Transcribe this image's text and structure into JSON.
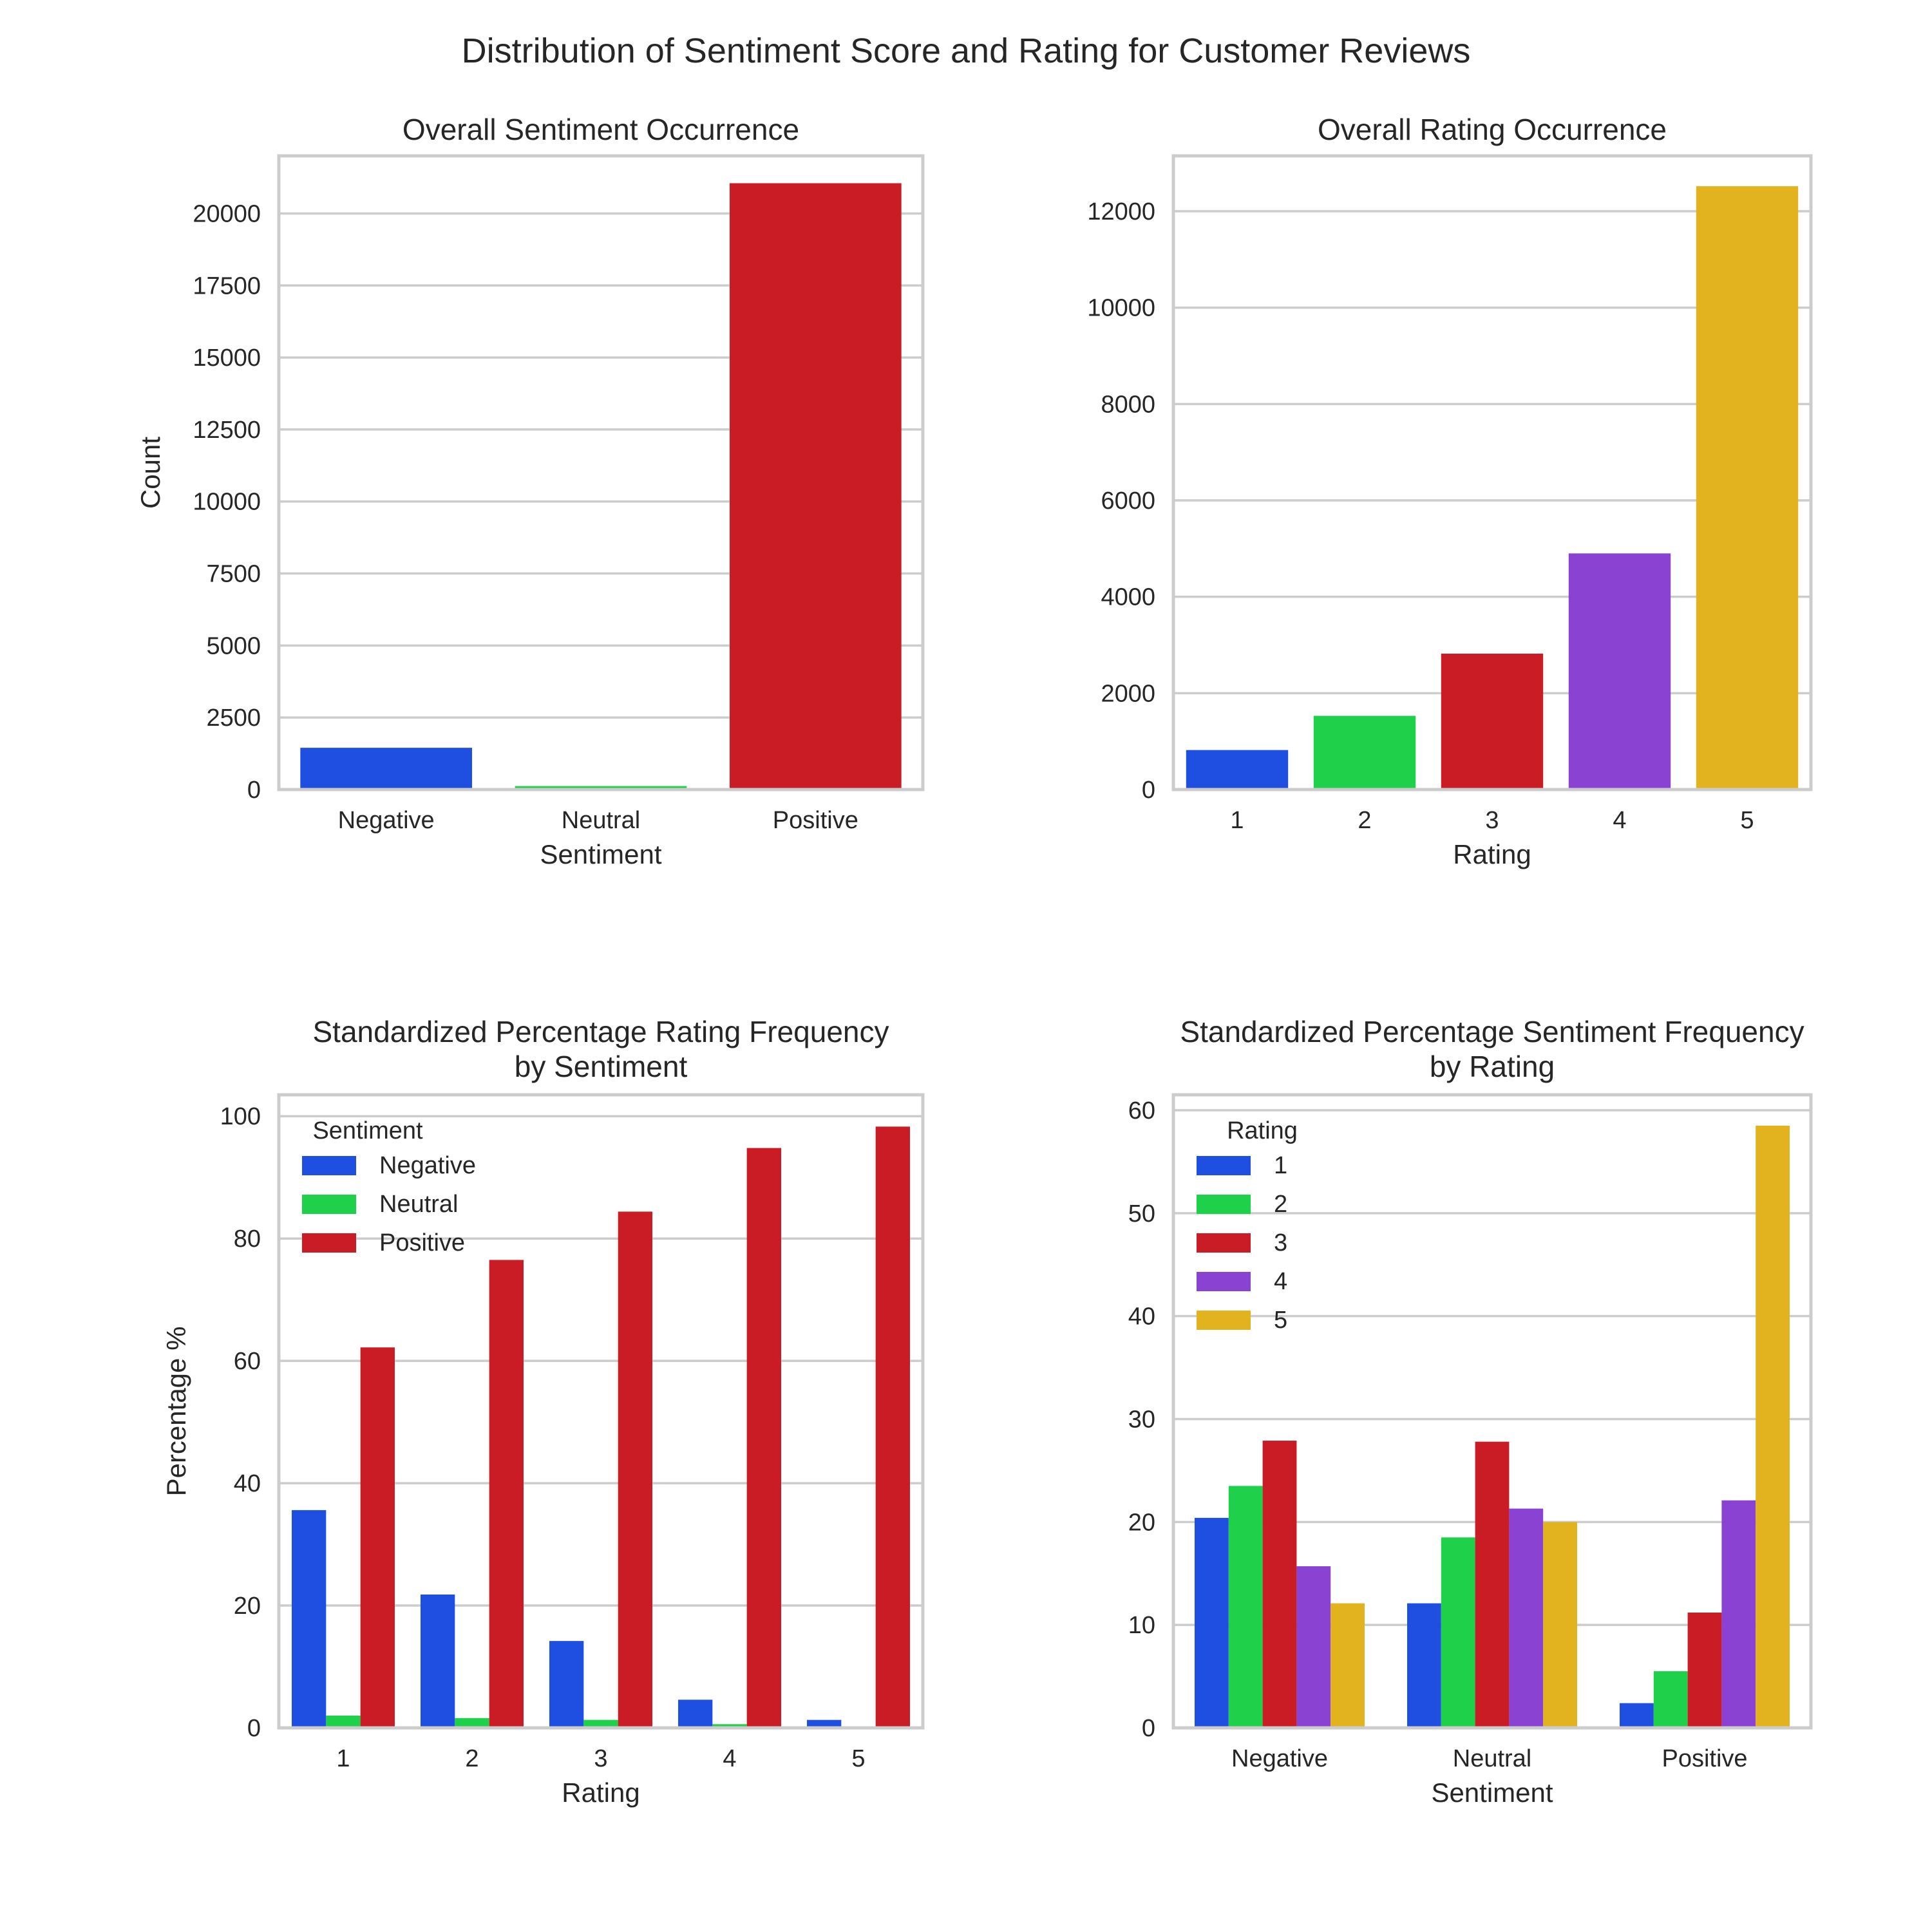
{
  "figure": {
    "title": "Distribution of Sentiment Score and Rating for Customer Reviews"
  },
  "colors": {
    "blue": "#1f4fe0",
    "green": "#1fd14a",
    "red": "#c91c25",
    "purple": "#8a42d2",
    "gold": "#e3b21f",
    "grid": "#cccccc",
    "text": "#262626"
  },
  "chart_data": [
    {
      "id": "p1",
      "type": "bar",
      "title": [
        "Overall Sentiment Occurrence"
      ],
      "xlabel": "Sentiment",
      "ylabel": "Count",
      "ylim": [
        0,
        22000
      ],
      "yticks": [
        0,
        2500,
        5000,
        7500,
        10000,
        12500,
        15000,
        17500,
        20000
      ],
      "categories": [
        "Negative",
        "Neutral",
        "Positive"
      ],
      "values": [
        1450,
        120,
        21050
      ],
      "bar_colors": [
        "#1f4fe0",
        "#1fd14a",
        "#c91c25"
      ],
      "grid": true
    },
    {
      "id": "p2",
      "type": "bar",
      "title": [
        "Overall Rating Occurrence"
      ],
      "xlabel": "Rating",
      "ylabel": "",
      "ylim": [
        0,
        13150
      ],
      "yticks": [
        0,
        2000,
        4000,
        6000,
        8000,
        10000,
        12000
      ],
      "categories": [
        "1",
        "2",
        "3",
        "4",
        "5"
      ],
      "values": [
        820,
        1530,
        2820,
        4900,
        12520
      ],
      "bar_colors": [
        "#1f4fe0",
        "#1fd14a",
        "#c91c25",
        "#8a42d2",
        "#e3b21f"
      ],
      "grid": true
    },
    {
      "id": "p3",
      "type": "bar",
      "title": [
        "Standardized Percentage Rating Frequency",
        "by Sentiment"
      ],
      "xlabel": "Rating",
      "ylabel": "Percentage %",
      "ylim": [
        0,
        103.5
      ],
      "yticks": [
        0,
        20,
        40,
        60,
        80,
        100
      ],
      "categories": [
        "1",
        "2",
        "3",
        "4",
        "5"
      ],
      "series": [
        {
          "name": "Negative",
          "color": "#1f4fe0",
          "values": [
            35.6,
            21.8,
            14.2,
            4.6,
            1.3
          ]
        },
        {
          "name": "Neutral",
          "color": "#1fd14a",
          "values": [
            2.0,
            1.6,
            1.3,
            0.6,
            0.1
          ]
        },
        {
          "name": "Positive",
          "color": "#c91c25",
          "values": [
            62.2,
            76.5,
            84.4,
            94.8,
            98.3
          ]
        }
      ],
      "legend": {
        "title": "Sentiment",
        "placement": "upper-left"
      },
      "grid": true
    },
    {
      "id": "p4",
      "type": "bar",
      "title": [
        "Standardized Percentage Sentiment Frequency",
        "by Rating"
      ],
      "xlabel": "Sentiment",
      "ylabel": "",
      "ylim": [
        0,
        61.5
      ],
      "yticks": [
        0,
        10,
        20,
        30,
        40,
        50,
        60
      ],
      "categories": [
        "Negative",
        "Neutral",
        "Positive"
      ],
      "series": [
        {
          "name": "1",
          "color": "#1f4fe0",
          "values": [
            20.4,
            12.1,
            2.4
          ]
        },
        {
          "name": "2",
          "color": "#1fd14a",
          "values": [
            23.5,
            18.5,
            5.5
          ]
        },
        {
          "name": "3",
          "color": "#c91c25",
          "values": [
            27.9,
            27.8,
            11.2
          ]
        },
        {
          "name": "4",
          "color": "#8a42d2",
          "values": [
            15.7,
            21.3,
            22.1
          ]
        },
        {
          "name": "5",
          "color": "#e3b21f",
          "values": [
            12.1,
            20.0,
            58.5
          ]
        }
      ],
      "legend": {
        "title": "Rating",
        "placement": "upper-left"
      },
      "grid": true
    }
  ]
}
